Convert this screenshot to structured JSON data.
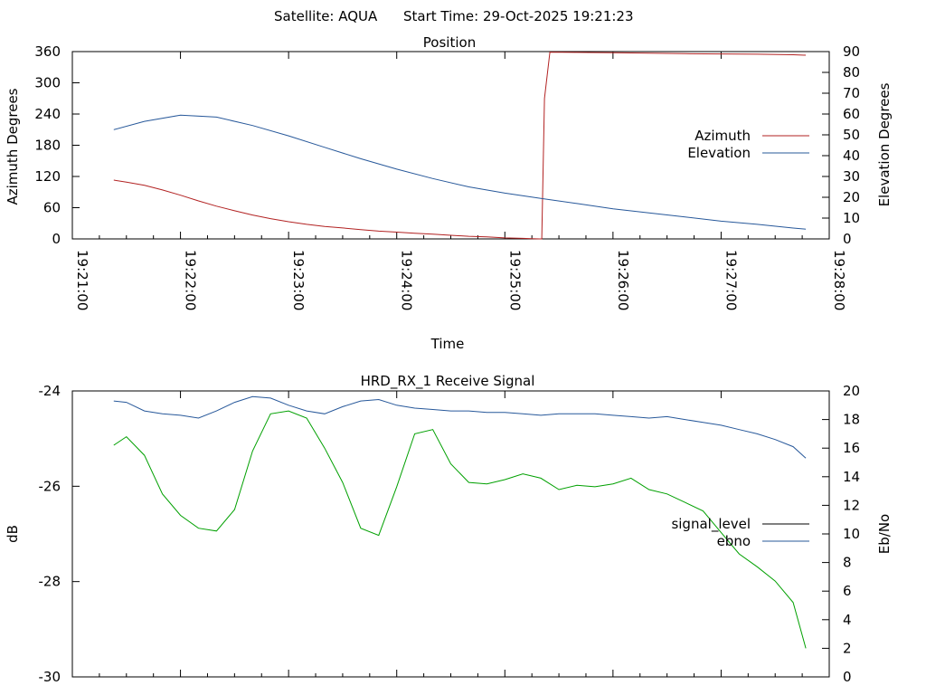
{
  "header": {
    "satellite_label": "Satellite: AQUA",
    "start_time_label": "Start Time: 29-Oct-2025 19:21:23"
  },
  "chart_data": [
    {
      "type": "line",
      "title": "Position",
      "xlabel": "Time",
      "ylabel": "Azimuth Degrees",
      "y2label": "Elevation Degrees",
      "xlim_seconds": [
        0,
        420
      ],
      "x_tick_labels": [
        "19:21:00",
        "19:22:00",
        "19:23:00",
        "19:24:00",
        "19:25:00",
        "19:26:00",
        "19:27:00",
        "19:28:00"
      ],
      "ylim": [
        0,
        360
      ],
      "y_ticks": [
        0,
        60,
        120,
        180,
        240,
        300,
        360
      ],
      "y2lim": [
        0,
        90
      ],
      "y2_ticks": [
        0,
        10,
        20,
        30,
        40,
        50,
        60,
        70,
        80,
        90
      ],
      "legend_position": "right",
      "series": [
        {
          "name": "Azimuth",
          "axis": "y",
          "color": "#b22222",
          "x": [
            23,
            30,
            40,
            50,
            60,
            70,
            80,
            90,
            100,
            110,
            120,
            130,
            140,
            150,
            160,
            170,
            180,
            190,
            200,
            210,
            220,
            230,
            240,
            250,
            255,
            259.5,
            260.5,
            262,
            265,
            280,
            300,
            320,
            340,
            360,
            380,
            400,
            407
          ],
          "values": [
            113,
            109,
            103,
            94,
            84,
            73,
            63,
            54,
            46,
            39,
            33,
            28,
            24,
            21,
            18,
            15,
            13,
            11,
            9,
            7,
            5,
            4,
            2,
            1,
            0.5,
            0,
            0,
            270,
            359,
            358.5,
            358,
            357,
            356,
            355.5,
            355,
            354,
            353
          ]
        },
        {
          "name": "Elevation",
          "axis": "y2",
          "color": "#27589a",
          "x": [
            23,
            40,
            60,
            80,
            100,
            120,
            140,
            160,
            180,
            200,
            220,
            240,
            260,
            280,
            300,
            320,
            340,
            360,
            380,
            400,
            407
          ],
          "values": [
            52.5,
            56.5,
            59.5,
            58.5,
            54.5,
            49.5,
            44,
            38.5,
            33.5,
            29,
            25,
            22,
            19.5,
            17,
            14.5,
            12.5,
            10.5,
            8.5,
            7,
            5.2,
            4.7
          ]
        }
      ]
    },
    {
      "type": "line",
      "title": "HRD_RX_1 Receive Signal",
      "xlabel": "",
      "ylabel": "dB",
      "y2label": "Eb/No",
      "xlim_seconds": [
        0,
        420
      ],
      "ylim": [
        -30,
        -24
      ],
      "y_ticks": [
        -30,
        -28,
        -26,
        -24
      ],
      "y2lim": [
        0,
        20
      ],
      "y2_ticks": [
        0,
        2,
        4,
        6,
        8,
        10,
        12,
        14,
        16,
        18,
        20
      ],
      "legend_position": "right",
      "series": [
        {
          "name": "signal_level",
          "axis": "y",
          "color": "#000000",
          "values": []
        },
        {
          "name": "ebno",
          "axis": "y2",
          "color": "#27589a",
          "x": [
            23,
            30,
            40,
            50,
            60,
            70,
            80,
            90,
            100,
            110,
            120,
            130,
            140,
            150,
            160,
            170,
            180,
            190,
            200,
            210,
            220,
            230,
            240,
            250,
            260,
            270,
            280,
            290,
            300,
            310,
            320,
            330,
            340,
            350,
            360,
            370,
            380,
            390,
            400,
            407
          ],
          "values": [
            19.3,
            19.2,
            18.6,
            18.4,
            18.3,
            18.1,
            18.6,
            19.2,
            19.6,
            19.5,
            19.0,
            18.6,
            18.4,
            18.9,
            19.3,
            19.4,
            19.0,
            18.8,
            18.7,
            18.6,
            18.6,
            18.5,
            18.5,
            18.4,
            18.3,
            18.4,
            18.4,
            18.4,
            18.3,
            18.2,
            18.1,
            18.2,
            18.0,
            17.8,
            17.6,
            17.3,
            17.0,
            16.6,
            16.1,
            15.3
          ]
        },
        {
          "name": "(unlabeled green trace)",
          "axis": "y2",
          "color": "#00a000",
          "x": [
            23,
            30,
            40,
            50,
            60,
            70,
            80,
            90,
            100,
            110,
            120,
            130,
            140,
            150,
            160,
            170,
            180,
            190,
            200,
            210,
            220,
            230,
            240,
            250,
            260,
            270,
            280,
            290,
            300,
            310,
            320,
            330,
            340,
            350,
            360,
            370,
            380,
            390,
            400,
            407
          ],
          "values": [
            16.2,
            16.8,
            15.5,
            12.8,
            11.3,
            10.4,
            10.2,
            11.7,
            15.8,
            18.4,
            18.6,
            18.1,
            16.0,
            13.6,
            10.4,
            9.9,
            13.3,
            17.0,
            17.3,
            14.9,
            13.6,
            13.5,
            13.8,
            14.2,
            13.9,
            13.1,
            13.4,
            13.3,
            13.5,
            13.9,
            13.1,
            12.8,
            12.2,
            11.6,
            10.1,
            8.6,
            7.7,
            6.7,
            5.2,
            2.0
          ]
        }
      ]
    }
  ]
}
